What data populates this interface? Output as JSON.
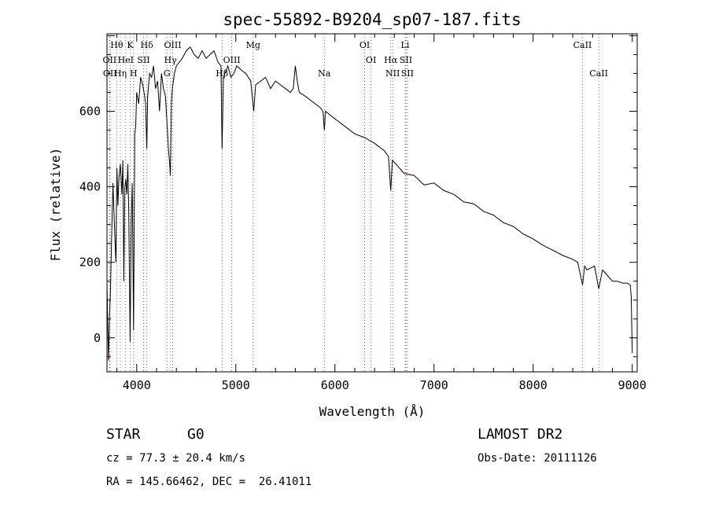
{
  "chart_data": {
    "type": "line",
    "title": "spec-55892-B9204_sp07-187.fits",
    "xlabel": "Wavelength (Å)",
    "ylabel": "Flux (relative)",
    "xlim": [
      3700,
      9050
    ],
    "ylim": [
      -90,
      805
    ],
    "xticks": [
      4000,
      5000,
      6000,
      7000,
      8000,
      9000
    ],
    "yticks": [
      0,
      200,
      400,
      600
    ],
    "series": [
      {
        "x": [
          3700,
          3715,
          3725,
          3735,
          3745,
          3760,
          3775,
          3790,
          3800,
          3810,
          3820,
          3835,
          3850,
          3860,
          3870,
          3880,
          3890,
          3900,
          3910,
          3920,
          3933,
          3945,
          3955,
          3968,
          3980,
          3990,
          4000,
          4020,
          4040,
          4060,
          4080,
          4090,
          4102,
          4110,
          4130,
          4150,
          4170,
          4190,
          4210,
          4230,
          4250,
          4270,
          4290,
          4310,
          4320,
          4330,
          4340,
          4350,
          4360,
          4380,
          4400,
          4430,
          4460,
          4500,
          4540,
          4580,
          4620,
          4660,
          4700,
          4740,
          4780,
          4820,
          4850,
          4861,
          4875,
          4890,
          4920,
          4950,
          4980,
          5010,
          5050,
          5100,
          5150,
          5180,
          5200,
          5250,
          5300,
          5350,
          5400,
          5450,
          5500,
          5550,
          5580,
          5600,
          5620,
          5640,
          5700,
          5750,
          5800,
          5850,
          5880,
          5893,
          5905,
          5950,
          6000,
          6100,
          6200,
          6300,
          6400,
          6500,
          6540,
          6563,
          6580,
          6650,
          6700,
          6800,
          6900,
          7000,
          7100,
          7200,
          7300,
          7400,
          7500,
          7600,
          7700,
          7800,
          7900,
          8000,
          8100,
          8200,
          8300,
          8400,
          8450,
          8498,
          8520,
          8542,
          8580,
          8620,
          8662,
          8700,
          8750,
          8800,
          8850,
          8900,
          8950,
          8980,
          8990,
          9000
        ],
        "y": [
          140,
          -60,
          50,
          120,
          250,
          410,
          300,
          200,
          450,
          350,
          420,
          460,
          380,
          470,
          150,
          400,
          420,
          380,
          460,
          330,
          -10,
          320,
          410,
          20,
          540,
          560,
          650,
          620,
          690,
          670,
          640,
          620,
          500,
          640,
          700,
          690,
          720,
          660,
          680,
          600,
          700,
          660,
          640,
          550,
          500,
          470,
          430,
          620,
          660,
          700,
          720,
          730,
          740,
          760,
          770,
          750,
          740,
          760,
          740,
          750,
          760,
          730,
          720,
          500,
          690,
          700,
          720,
          690,
          700,
          720,
          710,
          700,
          680,
          600,
          670,
          680,
          690,
          660,
          680,
          670,
          660,
          650,
          660,
          720,
          680,
          650,
          640,
          630,
          620,
          610,
          600,
          550,
          600,
          590,
          580,
          560,
          540,
          530,
          515,
          495,
          480,
          390,
          470,
          450,
          435,
          430,
          405,
          410,
          390,
          380,
          360,
          355,
          335,
          325,
          305,
          295,
          275,
          262,
          245,
          232,
          218,
          208,
          200,
          140,
          190,
          180,
          185,
          190,
          130,
          180,
          165,
          150,
          150,
          145,
          145,
          140,
          110,
          -40
        ]
      }
    ],
    "lines": [
      {
        "label": "Hθ",
        "x": 3798,
        "color": "#777777"
      },
      {
        "label": "K",
        "x": 3934,
        "color": "#777777"
      },
      {
        "label": "Hδ",
        "x": 4102,
        "color": "#777777"
      },
      {
        "label": "OIII",
        "x": 4363,
        "color": "#cc3333"
      },
      {
        "label": "Mg",
        "x": 5175,
        "color": "#777777"
      },
      {
        "label": "OI",
        "x": 6300,
        "color": "#cc3333"
      },
      {
        "label": "Li",
        "x": 6708,
        "color": "#777777"
      },
      {
        "label": "CaII",
        "x": 8498,
        "color": "#777777"
      },
      {
        "label": "OII",
        "x": 3727,
        "color": "#cc3333"
      },
      {
        "label": "HeI",
        "x": 3889,
        "color": "#777777"
      },
      {
        "label": "SII",
        "x": 4070,
        "color": "#cc3333"
      },
      {
        "label": "Hγ",
        "x": 4340,
        "color": "#777777"
      },
      {
        "label": "OIII",
        "x": 4959,
        "color": "#cc3333"
      },
      {
        "label": "OI",
        "x": 6364,
        "color": "#cc3333"
      },
      {
        "label": "Hα",
        "x": 6563,
        "color": "#777777"
      },
      {
        "label": "SII",
        "x": 6716,
        "color": "#cc3333"
      },
      {
        "label": "OII",
        "x": 3730,
        "color": "#cc3333"
      },
      {
        "label": "Hη",
        "x": 3835,
        "color": "#777777"
      },
      {
        "label": "H",
        "x": 3968,
        "color": "#777777"
      },
      {
        "label": "G",
        "x": 4305,
        "color": "#777777"
      },
      {
        "label": "Hβ",
        "x": 4861,
        "color": "#777777"
      },
      {
        "label": "Na",
        "x": 5893,
        "color": "#777777"
      },
      {
        "label": "NII",
        "x": 6583,
        "color": "#cc3333"
      },
      {
        "label": "SII",
        "x": 6731,
        "color": "#cc3333"
      },
      {
        "label": "CaII",
        "x": 8662,
        "color": "#777777"
      }
    ]
  },
  "info": {
    "object_class": "STAR",
    "subclass": "G0",
    "survey": "LAMOST DR2",
    "redshift": "cz = 77.3 ± 20.4 km/s",
    "obs_date": "Obs-Date: 20111126",
    "coords": "RA = 145.66462, DEC =  26.41011"
  }
}
